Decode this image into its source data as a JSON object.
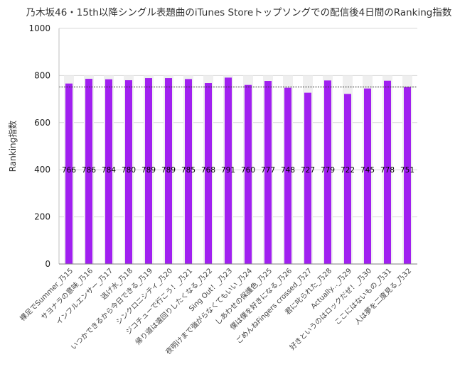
{
  "chart_data": {
    "type": "bar",
    "title": "乃木坂46・15th以降シングル表題曲のiTunes Storeトップソングでの配信後4日間のRanking指数",
    "xlabel": "",
    "ylabel": "Ranking指数",
    "ylim": [
      0,
      1000
    ],
    "yticks": [
      0,
      200,
      400,
      600,
      800,
      1000
    ],
    "grid": true,
    "reference_line": 751,
    "categories": [
      "裸足でSummer_乃15",
      "サヨナラの意味_乃16",
      "インフルエンサー_乃17",
      "逃げ水_乃18",
      "いつかできるから今日できる_乃19",
      "シンクロニシティ_乃20",
      "ジコチューで行こう！_乃21",
      "帰り道は遠回りしたくなる_乃22",
      "Sing Out！_乃23",
      "夜明けまで強がらなくてもいい_乃24",
      "しあわせの保護色_乃25",
      "僕は僕を好きになる_乃26",
      "ごめんねFingers crossed_乃27",
      "君に叱られた_乃28",
      "Actually..._乃29",
      "好きというのはロックだぜ！_乃30",
      "ここにはないもの_乃31",
      "人は夢を二度見る_乃32"
    ],
    "series": [
      {
        "values": [
          766,
          786,
          784,
          780,
          789,
          789,
          785,
          768,
          791,
          760,
          777,
          748,
          727,
          779,
          722,
          745,
          778,
          751
        ],
        "data_labels": [
          "766",
          "786",
          "784",
          "780",
          "789",
          "789",
          "785",
          "768",
          "791",
          "760",
          "777",
          "748",
          "727",
          "779",
          "722",
          "745",
          "778",
          "751"
        ]
      }
    ],
    "colors": {
      "bar": "#a020f0",
      "bar_background": "#efefef",
      "reference_line": "#333333",
      "grid": "#d9d9d9"
    }
  }
}
